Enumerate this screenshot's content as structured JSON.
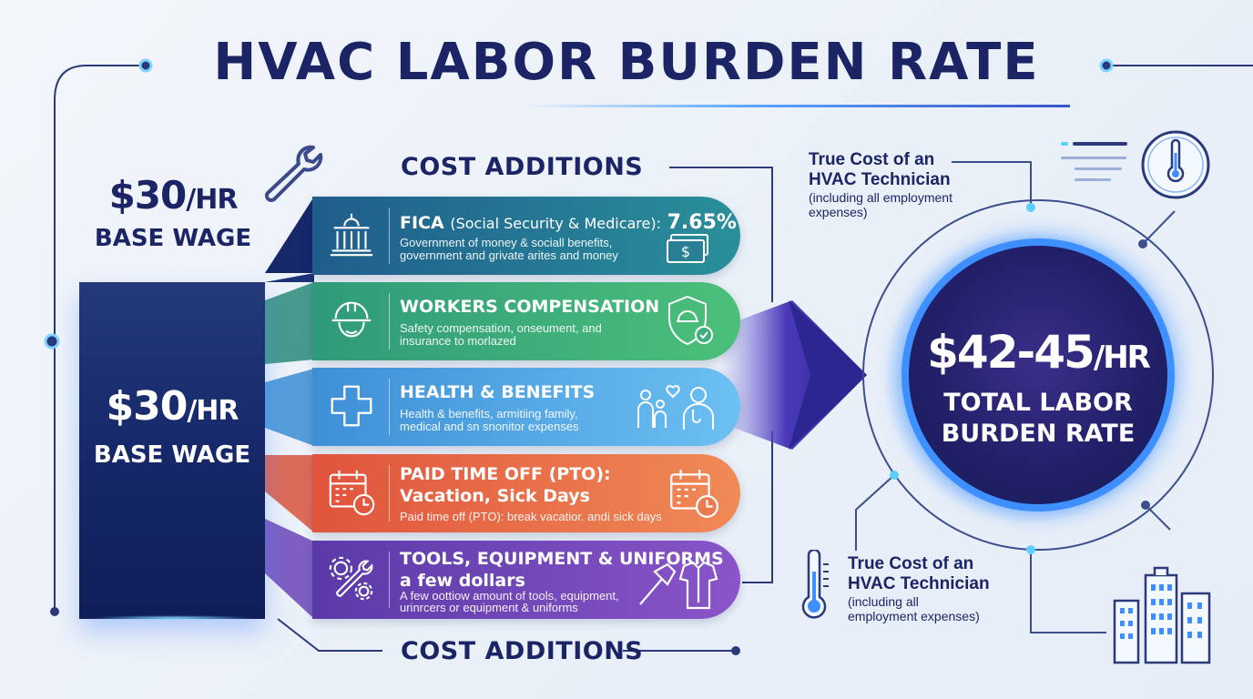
{
  "title": "HVAC LABOR BURDEN RATE",
  "base_wage": {
    "amount": "$30",
    "unit": "/HR",
    "label": "BASE WAGE"
  },
  "cost_additions_label": "COST ADDITIONS",
  "cost_items": [
    {
      "title": "FICA",
      "title_sub": "(Social Security & Medicare):",
      "title_value": "7.65%",
      "desc_line1": "Government of money & sociall benefits,",
      "desc_line2": "government and grivate arites and money",
      "color_start": "#1f5d8c",
      "color_end": "#2a8f9a",
      "icon": "government-building-icon",
      "right_icon": "money-icon"
    },
    {
      "title": "WORKERS COMPENSATION",
      "desc_line1": "Safety compensation, onseument, and",
      "desc_line2": "insurance to morlazed",
      "color_start": "#2f9a7a",
      "color_end": "#4cc07a",
      "icon": "hard-hat-icon",
      "right_icon": "shield-check-icon"
    },
    {
      "title": "HEALTH & BENEFITS",
      "desc_line1": "Health & benefits, armitiing family,",
      "desc_line2": "medical and sn snonitor expenses",
      "color_start": "#3e8fd6",
      "color_end": "#6cc0f2",
      "icon": "medical-cross-icon",
      "right_icon": "family-doctor-icon"
    },
    {
      "title": "PAID TIME OFF (PTO):",
      "title2": "Vacation, Sick Days",
      "desc_line1": "Paid time off (PTO): break vacatior. andi sick days",
      "color_start": "#e0543c",
      "color_end": "#f08a56",
      "icon": "calendar-clock-icon",
      "right_icon": "calendar-clock-icon"
    },
    {
      "title": "TOOLS, EQUIPMENT & UNIFORMS",
      "title2": "a few dollars",
      "desc_line1": "A few oottiow amount of tools, equipment,",
      "desc_line2": "urinrcers or equipment & uniforms",
      "color_start": "#5a3aa8",
      "color_end": "#8a55c8",
      "icon": "gears-wrench-icon",
      "right_icon": "hammer-shirt-icon"
    }
  ],
  "total": {
    "amount": "$42-45",
    "unit": "/HR",
    "label_line1": "TOTAL LABOR",
    "label_line2": "BURDEN RATE"
  },
  "note_top": {
    "line1": "True Cost of an",
    "line2": "HVAC Technician",
    "line3": "(including all employment",
    "line4": "expenses)"
  },
  "note_bottom": {
    "line1": "True Cost of an",
    "line2": "HVAC Technician",
    "line3": "(including all",
    "line4": "employment expenses)"
  },
  "colors": {
    "navy": "#1b2566",
    "accent": "#3e8fff",
    "arrow": "#3a2a9a"
  }
}
